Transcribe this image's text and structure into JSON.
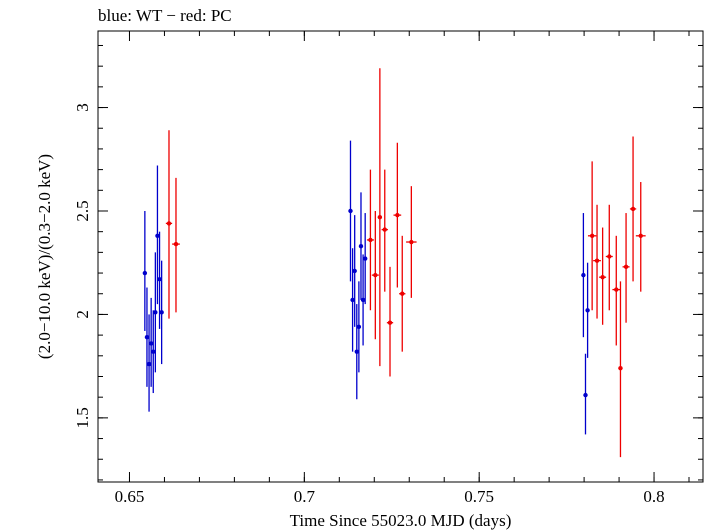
{
  "chart_data": {
    "type": "scatter",
    "title": "blue: WT − red: PC",
    "xlabel": "Time Since 55023.0 MJD (days)",
    "ylabel": "(2.0−10.0 keV)/(0.3−2.0 keV)",
    "xlim": [
      0.641,
      0.814
    ],
    "ylim": [
      1.19,
      3.37
    ],
    "xticks": [
      0.65,
      0.7,
      0.75,
      0.8
    ],
    "xtick_labels": [
      "0.65",
      "0.7",
      "0.75",
      "0.8"
    ],
    "yticks": [
      1.5,
      2,
      2.5,
      3
    ],
    "ytick_labels": [
      "1.5",
      "2",
      "2.5",
      "3"
    ],
    "grid": false,
    "series": [
      {
        "name": "WT",
        "color": "#0000cc",
        "points": [
          {
            "x": 0.6544,
            "y": 2.2,
            "ylo": 1.92,
            "yhi": 2.5
          },
          {
            "x": 0.655,
            "y": 1.89,
            "ylo": 1.65,
            "yhi": 2.13
          },
          {
            "x": 0.6556,
            "y": 1.76,
            "ylo": 1.53,
            "yhi": 2.0
          },
          {
            "x": 0.6562,
            "y": 1.86,
            "ylo": 1.65,
            "yhi": 2.08
          },
          {
            "x": 0.6568,
            "y": 1.82,
            "ylo": 1.62,
            "yhi": 2.02
          },
          {
            "x": 0.6574,
            "y": 2.01,
            "ylo": 1.72,
            "yhi": 2.3
          },
          {
            "x": 0.658,
            "y": 2.38,
            "ylo": 2.05,
            "yhi": 2.72
          },
          {
            "x": 0.6586,
            "y": 2.17,
            "ylo": 1.93,
            "yhi": 2.4
          },
          {
            "x": 0.6592,
            "y": 2.01,
            "ylo": 1.76,
            "yhi": 2.26
          },
          {
            "x": 0.7132,
            "y": 2.5,
            "ylo": 2.16,
            "yhi": 2.84
          },
          {
            "x": 0.7138,
            "y": 2.07,
            "ylo": 1.82,
            "yhi": 2.32
          },
          {
            "x": 0.7144,
            "y": 2.21,
            "ylo": 1.94,
            "yhi": 2.48
          },
          {
            "x": 0.715,
            "y": 1.82,
            "ylo": 1.59,
            "yhi": 2.05
          },
          {
            "x": 0.7156,
            "y": 1.94,
            "ylo": 1.72,
            "yhi": 2.16
          },
          {
            "x": 0.7162,
            "y": 2.33,
            "ylo": 2.07,
            "yhi": 2.59
          },
          {
            "x": 0.7168,
            "y": 2.07,
            "ylo": 1.85,
            "yhi": 2.29
          },
          {
            "x": 0.7174,
            "y": 2.27,
            "ylo": 2.05,
            "yhi": 2.49
          },
          {
            "x": 0.7798,
            "y": 2.19,
            "ylo": 1.89,
            "yhi": 2.49
          },
          {
            "x": 0.7804,
            "y": 1.61,
            "ylo": 1.42,
            "yhi": 1.81
          },
          {
            "x": 0.781,
            "y": 2.02,
            "ylo": 1.79,
            "yhi": 2.25
          }
        ]
      },
      {
        "name": "PC",
        "color": "#ee0000",
        "points": [
          {
            "x": 0.6613,
            "y": 2.44,
            "xerr": 0.0009,
            "ylo": 1.98,
            "yhi": 2.89
          },
          {
            "x": 0.6633,
            "y": 2.34,
            "xerr": 0.0011,
            "ylo": 2.01,
            "yhi": 2.66
          },
          {
            "x": 0.7189,
            "y": 2.36,
            "xerr": 0.001,
            "ylo": 2.02,
            "yhi": 2.7
          },
          {
            "x": 0.7203,
            "y": 2.19,
            "xerr": 0.001,
            "ylo": 1.88,
            "yhi": 2.5
          },
          {
            "x": 0.7216,
            "y": 2.47,
            "xerr": 0.0006,
            "ylo": 1.75,
            "yhi": 3.19
          },
          {
            "x": 0.723,
            "y": 2.41,
            "xerr": 0.0009,
            "ylo": 2.11,
            "yhi": 2.7
          },
          {
            "x": 0.7245,
            "y": 1.96,
            "xerr": 0.0009,
            "ylo": 1.7,
            "yhi": 2.23
          },
          {
            "x": 0.7266,
            "y": 2.48,
            "xerr": 0.0011,
            "ylo": 2.13,
            "yhi": 2.83
          },
          {
            "x": 0.728,
            "y": 2.1,
            "xerr": 0.0009,
            "ylo": 1.82,
            "yhi": 2.38
          },
          {
            "x": 0.7306,
            "y": 2.35,
            "xerr": 0.0015,
            "ylo": 2.08,
            "yhi": 2.62
          },
          {
            "x": 0.7823,
            "y": 2.38,
            "xerr": 0.0012,
            "ylo": 2.02,
            "yhi": 2.74
          },
          {
            "x": 0.7837,
            "y": 2.26,
            "xerr": 0.0011,
            "ylo": 1.98,
            "yhi": 2.53
          },
          {
            "x": 0.7853,
            "y": 2.18,
            "xerr": 0.001,
            "ylo": 1.95,
            "yhi": 2.42
          },
          {
            "x": 0.7872,
            "y": 2.28,
            "xerr": 0.001,
            "ylo": 2.02,
            "yhi": 2.53
          },
          {
            "x": 0.7892,
            "y": 2.12,
            "xerr": 0.0011,
            "ylo": 1.85,
            "yhi": 2.38
          },
          {
            "x": 0.7904,
            "y": 1.74,
            "xerr": 0.0006,
            "ylo": 1.31,
            "yhi": 2.16
          },
          {
            "x": 0.792,
            "y": 2.23,
            "xerr": 0.001,
            "ylo": 1.96,
            "yhi": 2.49
          },
          {
            "x": 0.794,
            "y": 2.51,
            "xerr": 0.0009,
            "ylo": 2.16,
            "yhi": 2.86
          },
          {
            "x": 0.7962,
            "y": 2.38,
            "xerr": 0.0014,
            "ylo": 2.11,
            "yhi": 2.64
          }
        ]
      }
    ]
  }
}
